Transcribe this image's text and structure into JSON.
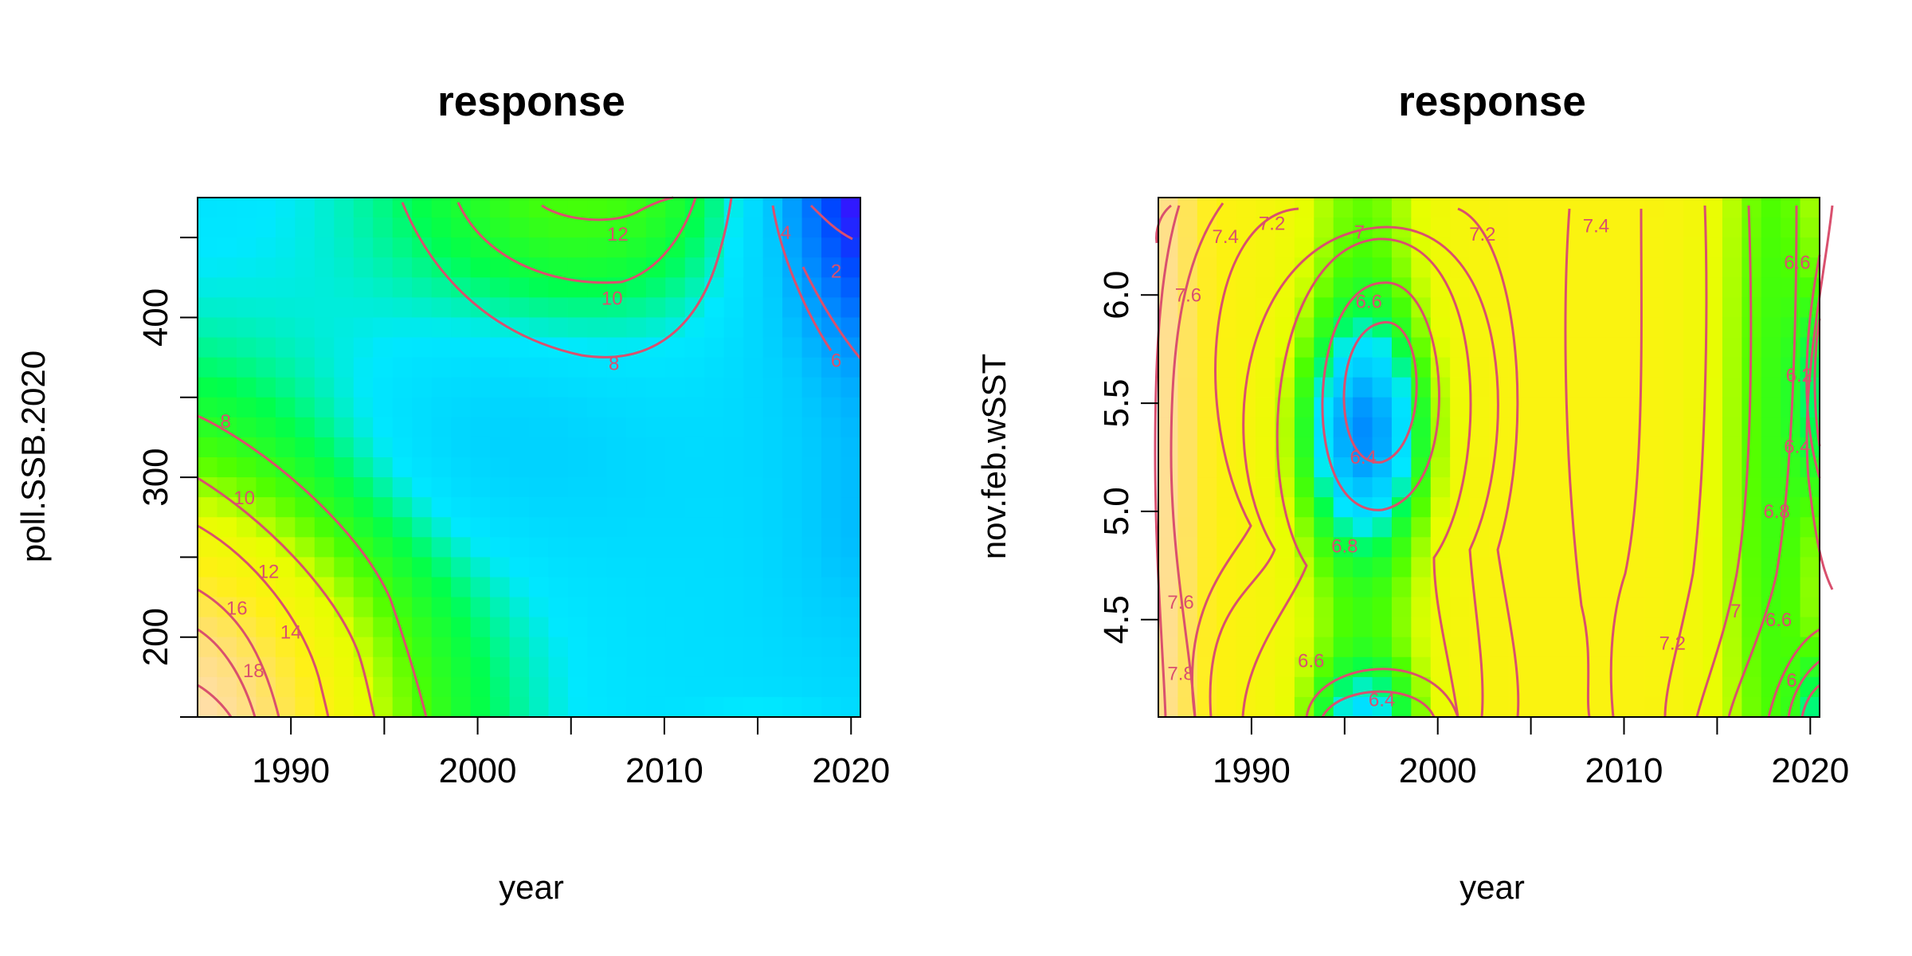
{
  "chart_data": [
    {
      "type": "heatmap",
      "title": "response",
      "xlabel": "year",
      "ylabel": "poll.SSB.2020",
      "xlim": [
        1985,
        2020.5
      ],
      "ylim": [
        150,
        475
      ],
      "x_ticks": [
        1990,
        1995,
        2000,
        2005,
        2010,
        2015,
        2020
      ],
      "x_tick_labels": [
        "1990",
        "",
        "2000",
        "",
        "2010",
        "",
        "2020"
      ],
      "y_ticks": [
        150,
        200,
        250,
        300,
        350,
        400,
        450
      ],
      "y_tick_labels": [
        "",
        "200",
        "",
        "300",
        "",
        "400",
        ""
      ],
      "z_range": [
        0,
        20
      ],
      "color_scale": "topo-like: blue (low) → cyan → green → yellow → tan (high)",
      "contour_color": "#d9506e",
      "contour_levels": [
        2,
        4,
        6,
        8,
        10,
        12,
        14,
        16,
        18
      ],
      "contour_labels": [
        {
          "text": "12",
          "x": 2007.5,
          "y": 452
        },
        {
          "text": "10",
          "x": 2007.2,
          "y": 412
        },
        {
          "text": "8",
          "x": 2007.3,
          "y": 371
        },
        {
          "text": "4",
          "x": 2016.5,
          "y": 453
        },
        {
          "text": "2",
          "x": 2019.2,
          "y": 429
        },
        {
          "text": "6",
          "x": 2019.2,
          "y": 373
        },
        {
          "text": "8",
          "x": 1986.5,
          "y": 335
        },
        {
          "text": "10",
          "x": 1987.5,
          "y": 287
        },
        {
          "text": "12",
          "x": 1988.8,
          "y": 241
        },
        {
          "text": "14",
          "x": 1990.0,
          "y": 203
        },
        {
          "text": "16",
          "x": 1987.1,
          "y": 218
        },
        {
          "text": "18",
          "x": 1988.0,
          "y": 179
        }
      ]
    },
    {
      "type": "heatmap",
      "title": "response",
      "xlabel": "year",
      "ylabel": "nov.feb.wSST",
      "xlim": [
        1985,
        2020.5
      ],
      "ylim": [
        4.05,
        6.45
      ],
      "x_ticks": [
        1990,
        1995,
        2000,
        2005,
        2010,
        2015,
        2020
      ],
      "x_tick_labels": [
        "1990",
        "",
        "2000",
        "",
        "2010",
        "",
        "2020"
      ],
      "y_ticks": [
        4.5,
        5.0,
        5.5,
        6.0
      ],
      "y_tick_labels": [
        "4.5",
        "5.0",
        "5.5",
        "6.0"
      ],
      "z_range": [
        6.0,
        8.0
      ],
      "color_scale": "topo-like: blue (low) → cyan → green → yellow → tan (high)",
      "contour_color": "#d9506e",
      "contour_levels": [
        6.2,
        6.4,
        6.6,
        6.8,
        7.0,
        7.2,
        7.4,
        7.6,
        7.8
      ],
      "contour_labels": [
        {
          "text": "7.6",
          "x": 1986.6,
          "y": 6.0
        },
        {
          "text": "7.4",
          "x": 1988.6,
          "y": 6.27
        },
        {
          "text": "7.2",
          "x": 1991.1,
          "y": 6.33
        },
        {
          "text": "7",
          "x": 1995.8,
          "y": 6.29
        },
        {
          "text": "7.2",
          "x": 2002.4,
          "y": 6.28
        },
        {
          "text": "7.4",
          "x": 2008.5,
          "y": 6.32
        },
        {
          "text": "6.6",
          "x": 1996.3,
          "y": 5.97
        },
        {
          "text": "6.4",
          "x": 1996.0,
          "y": 5.25
        },
        {
          "text": "6.8",
          "x": 1995.0,
          "y": 4.84
        },
        {
          "text": "6.6",
          "x": 1993.2,
          "y": 4.31
        },
        {
          "text": "6.4",
          "x": 1997.0,
          "y": 4.13
        },
        {
          "text": "7.6",
          "x": 1986.2,
          "y": 4.58
        },
        {
          "text": "7.8",
          "x": 1986.2,
          "y": 4.25
        },
        {
          "text": "6.6",
          "x": 2019.3,
          "y": 6.15
        },
        {
          "text": "6.2",
          "x": 2019.4,
          "y": 5.63
        },
        {
          "text": "6.4",
          "x": 2019.3,
          "y": 5.3
        },
        {
          "text": "6.8",
          "x": 2018.2,
          "y": 5.0
        },
        {
          "text": "7",
          "x": 2016.0,
          "y": 4.54
        },
        {
          "text": "7.2",
          "x": 2012.6,
          "y": 4.39
        },
        {
          "text": "6.6",
          "x": 2018.3,
          "y": 4.5
        },
        {
          "text": "6",
          "x": 2019.0,
          "y": 4.22
        }
      ]
    }
  ]
}
